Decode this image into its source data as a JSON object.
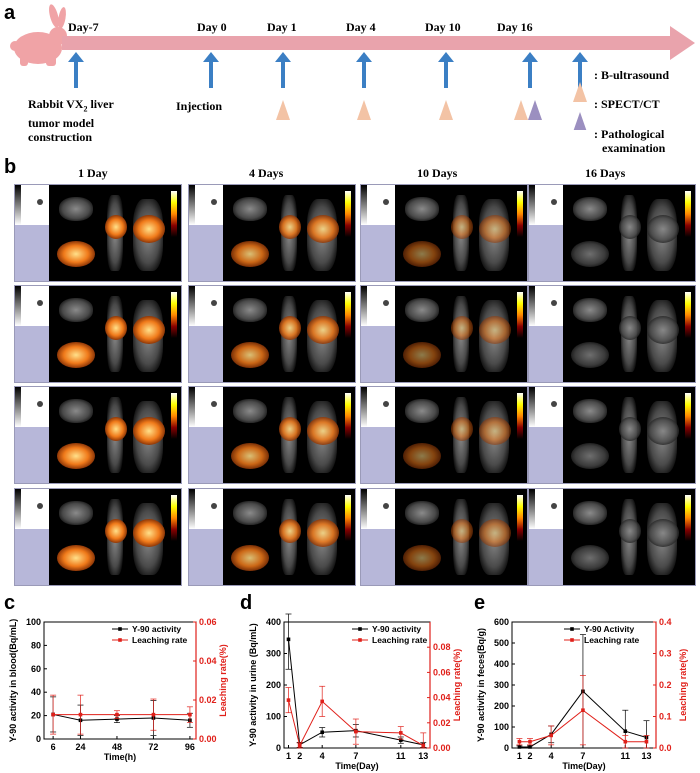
{
  "panels": {
    "a": "a",
    "b": "b",
    "c": "c",
    "d": "d",
    "e": "e"
  },
  "timeline": {
    "days": [
      "Day-7",
      "Day 0",
      "Day 1",
      "Day 4",
      "Day 10",
      "Day 16"
    ],
    "notes": {
      "model_line1": "Rabbit VX",
      "model_sub": "2",
      "model_line1_end": " liver",
      "model_line2": "tumor model",
      "model_line3": "construction",
      "injection": "Injection"
    },
    "legend": {
      "ultrasound": ": B-ultrasound",
      "spect": ": SPECT/CT",
      "patho_line1": ": Pathological",
      "patho_line2": "examination"
    },
    "colors": {
      "arrow": "#3b7fc4",
      "bar": "#e9a3ac",
      "spect": "#f3c3a5",
      "patho": "#9b8fc0"
    }
  },
  "imaging": {
    "columns": [
      "1 Day",
      "4 Days",
      "10 Days",
      "16 Days"
    ]
  },
  "chart_data": [
    {
      "type": "line",
      "panel": "c",
      "x": [
        6,
        24,
        48,
        72,
        96
      ],
      "xlabel": "Time(h)",
      "ylabel": "Y-90 activity in blood(Bq/mL)",
      "ylabel2": "Leaching rate(%)",
      "xticks": [
        "6",
        "24",
        "48",
        "72",
        "96"
      ],
      "yticks": [
        "0",
        "20",
        "40",
        "60",
        "80",
        "100"
      ],
      "y2ticks": [
        "0.00",
        "0.02",
        "0.04",
        "0.06"
      ],
      "ylim": [
        0,
        100
      ],
      "y2lim": [
        0,
        0.06
      ],
      "series": [
        {
          "name": "Y-90 activity",
          "axis": "left",
          "color": "#000000",
          "values": [
            21,
            16,
            17,
            18,
            16
          ],
          "errors": [
            15,
            13,
            3,
            15,
            6
          ]
        },
        {
          "name": "Leaching rate",
          "axis": "right",
          "color": "#e0201a",
          "values": [
            0.0125,
            0.0125,
            0.0125,
            0.0125,
            0.0125
          ],
          "errors": [
            0.01,
            0.01,
            0.002,
            0.008,
            0.004
          ]
        }
      ]
    },
    {
      "type": "line",
      "panel": "d",
      "x": [
        1,
        2,
        4,
        7,
        11,
        13
      ],
      "xlabel": "Time(Day)",
      "ylabel": "Y-90 activity in urine (Bq/mL)",
      "ylabel2": "Leaching rate(%)",
      "xticks": [
        "1",
        "2",
        "4",
        "7",
        "11",
        "13"
      ],
      "yticks": [
        "0",
        "100",
        "200",
        "300",
        "400"
      ],
      "y2ticks": [
        "0.00",
        "0.02",
        "0.04",
        "0.06",
        "0.08"
      ],
      "ylim": [
        0,
        400
      ],
      "y2lim": [
        0,
        0.1
      ],
      "series": [
        {
          "name": "Y-90 activity",
          "axis": "left",
          "color": "#000000",
          "values": [
            345,
            10,
            50,
            55,
            25,
            10
          ],
          "errors": [
            95,
            8,
            15,
            20,
            10,
            8
          ]
        },
        {
          "name": "Leaching rate",
          "axis": "right",
          "color": "#e0201a",
          "values": [
            0.038,
            0.002,
            0.037,
            0.013,
            0.012,
            0.002
          ],
          "errors": [
            0.01,
            0.002,
            0.012,
            0.01,
            0.005,
            0.01
          ]
        }
      ]
    },
    {
      "type": "line",
      "panel": "e",
      "x": [
        1,
        2,
        4,
        7,
        11,
        13
      ],
      "xlabel": "Time(Day)",
      "ylabel": "Y-90 activity in feces(Bq/g)",
      "ylabel2": "Leaching rate(%)",
      "xticks": [
        "1",
        "2",
        "4",
        "7",
        "11",
        "13"
      ],
      "yticks": [
        "0",
        "100",
        "200",
        "300",
        "400",
        "500",
        "600"
      ],
      "y2ticks": [
        "0.0",
        "0.1",
        "0.2",
        "0.3",
        "0.4"
      ],
      "ylim": [
        0,
        600
      ],
      "y2lim": [
        0,
        0.4
      ],
      "series": [
        {
          "name": "Y-90 Activity",
          "axis": "left",
          "color": "#000000",
          "values": [
            5,
            5,
            65,
            270,
            80,
            50
          ],
          "errors": [
            5,
            5,
            40,
            270,
            100,
            80
          ]
        },
        {
          "name": "Leaching rate",
          "axis": "right",
          "color": "#e0201a",
          "values": [
            0.02,
            0.02,
            0.04,
            0.12,
            0.02,
            0.02
          ],
          "errors": [
            0.01,
            0.01,
            0.03,
            0.11,
            0.02,
            0.02
          ]
        }
      ]
    }
  ]
}
